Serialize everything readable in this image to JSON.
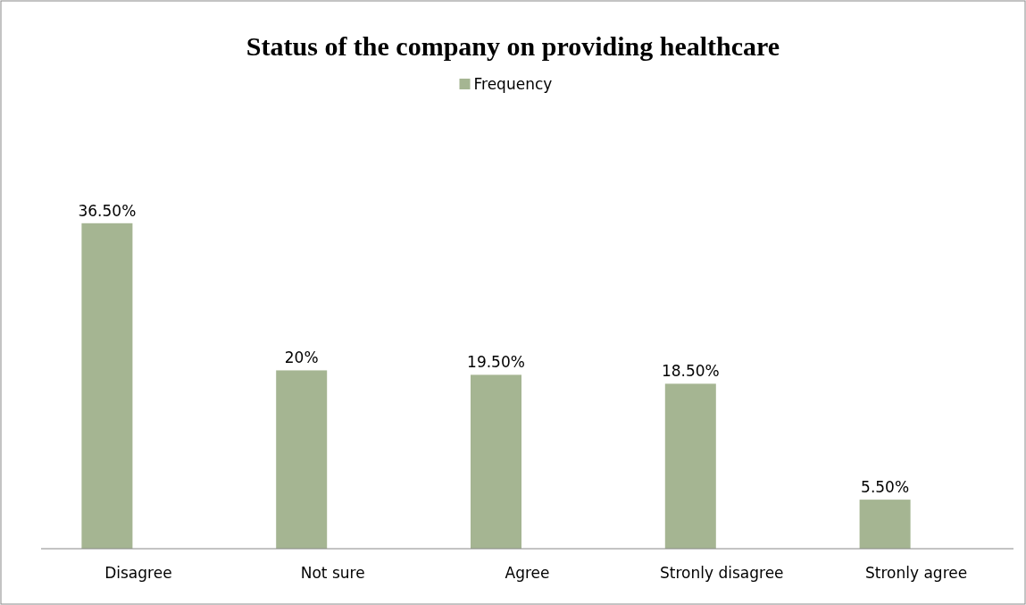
{
  "chart_data": {
    "type": "bar",
    "title": "Status of the company on providing healthcare",
    "categories": [
      "Disagree",
      "Not sure",
      "Agree",
      "Stronly disagree",
      "Stronly agree"
    ],
    "series": [
      {
        "name": "Frequency",
        "color": "#a5b592",
        "values": [
          36.5,
          20,
          19.5,
          18.5,
          5.5
        ],
        "value_labels": [
          "36.50%",
          "20%",
          "19.50%",
          "18.50%",
          "5.50%"
        ]
      }
    ],
    "legend": "top"
  }
}
